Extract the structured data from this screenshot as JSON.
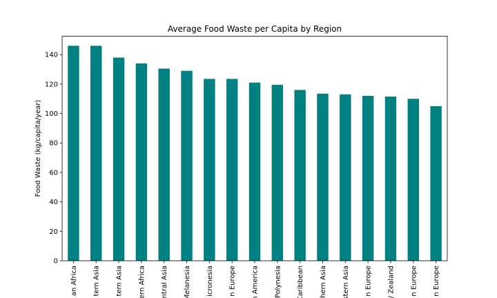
{
  "chart_data": {
    "type": "bar",
    "title": "Average Food Waste per Capita by Region",
    "xlabel": "",
    "ylabel": "Food Waste (kg/capita/year)",
    "categories": [
      "an Africa",
      "tern Asia",
      "tern Asia",
      "ern Africa",
      "ntral Asia",
      "Melanesia",
      "icronesia",
      "n Europe",
      "n America",
      "Polynesia",
      "Caribbean",
      "thern Asia",
      "stern Asia",
      "n Europe",
      "/ Zealand",
      "n Europe",
      "n Europe"
    ],
    "values": [
      146,
      146,
      138,
      134,
      130.5,
      129,
      123.5,
      123.5,
      121,
      119.5,
      116,
      113.5,
      113,
      112,
      111.5,
      110,
      105
    ],
    "ylim": [
      0,
      152.5
    ],
    "yticks": [
      0,
      20,
      40,
      60,
      80,
      100,
      120,
      140
    ],
    "bar_color": "#008080",
    "grid": false,
    "legend": "none"
  }
}
